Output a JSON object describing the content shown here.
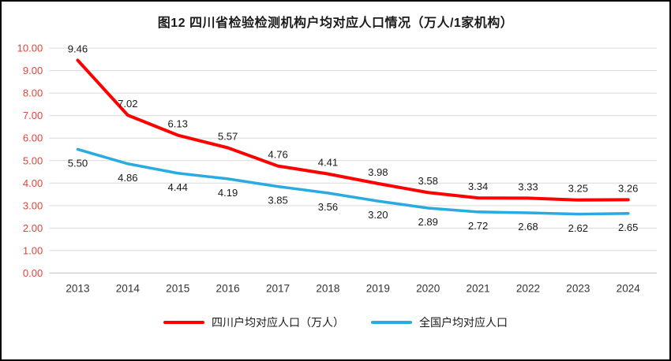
{
  "chart_data": {
    "type": "line",
    "title": "图12 四川省检验检测机构户均对应人口情况（万人/1家机构）",
    "categories": [
      "2013",
      "2014",
      "2015",
      "2016",
      "2017",
      "2018",
      "2019",
      "2020",
      "2021",
      "2022",
      "2023",
      "2024"
    ],
    "series": [
      {
        "name": "四川户均对应人口（万人）",
        "values": [
          9.46,
          7.02,
          6.13,
          5.57,
          4.76,
          4.41,
          3.98,
          3.58,
          3.34,
          3.33,
          3.25,
          3.26
        ],
        "color": "#FF0000",
        "width": 4,
        "label_position": "above"
      },
      {
        "name": "全国户均对应人口",
        "values": [
          5.5,
          4.86,
          4.44,
          4.19,
          3.85,
          3.56,
          3.2,
          2.89,
          2.72,
          2.68,
          2.62,
          2.65
        ],
        "color": "#29ABE2",
        "width": 3.5,
        "label_position": "below"
      }
    ],
    "ylim": [
      0,
      10
    ],
    "ytick_step": 1,
    "ytick_decimals": 2,
    "grid": true,
    "legend_position": "bottom",
    "colors": {
      "gridline": "#D9D9D9",
      "axis_line": "#BFBFBF",
      "y_tick": "#E2453C",
      "x_tick": "#333333",
      "data_label": "#1a1a1a"
    }
  }
}
